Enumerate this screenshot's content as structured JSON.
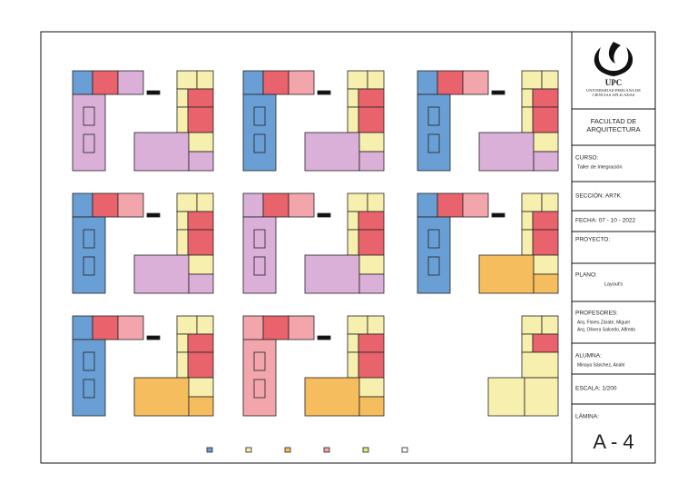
{
  "title_block": {
    "logo": {
      "acronym": "UPC",
      "university": "UNIVERSIDAD PERUANA DE",
      "university_2": "CIENCIAS APLICADAS"
    },
    "faculty": {
      "line_1": "FACULTAD DE",
      "line_2": "ARQUITECTURA"
    },
    "course": {
      "label": "CURSO:",
      "value": "Taller de Integración"
    },
    "section": "SECCIÓN: AR7K",
    "date": "FECHA: 07 - 10 - 2022",
    "project": {
      "label": "PROYECTO:"
    },
    "drawing": {
      "label": "PLANO:",
      "value": "Layout's"
    },
    "professors": {
      "label": "PROFESORES:",
      "names": [
        "Arq. Flores Zárate, Miguel",
        "Arq. Olivera Salcedo, Alfredo"
      ]
    },
    "student": {
      "label": "ALUMNA:",
      "value": "Minaya Sánchez, Anahí"
    },
    "scale": "ESCALA:  1/200",
    "sheet": {
      "label": "LÁMINA:",
      "value": "A - 4"
    }
  }
}
